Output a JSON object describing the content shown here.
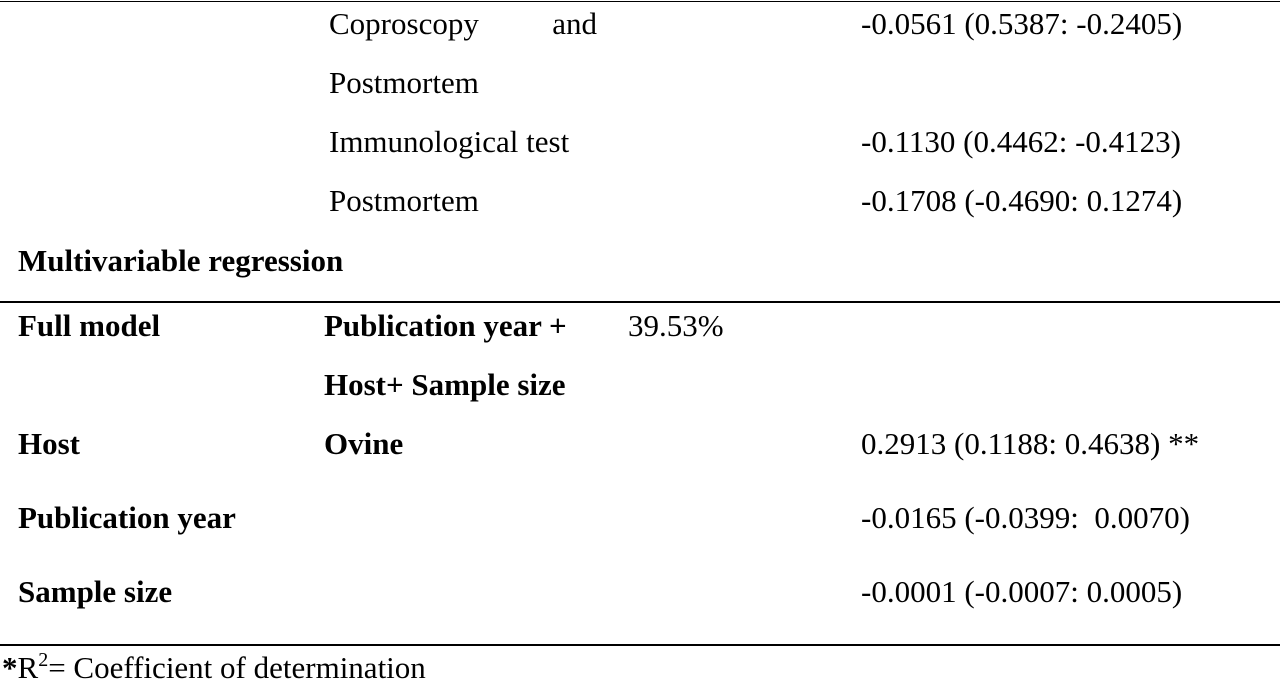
{
  "table": {
    "rows_top": [
      {
        "label_line1_a": "Coproscopy",
        "label_line1_b": "and",
        "label_line2": "Postmortem",
        "value": "-0.0561 (0.5387: -0.2405)"
      },
      {
        "label": "Immunological test",
        "value": "-0.1130 (0.4462: -0.4123)"
      },
      {
        "label": "Postmortem",
        "value": "-0.1708 (-0.4690: 0.1274)"
      }
    ],
    "section_title": "Multivariable regression",
    "full_model": {
      "label": "Full model",
      "model_line1": "Publication year +",
      "model_line2": "Host+ Sample size",
      "r2": "39.53%"
    },
    "host": {
      "label": "Host",
      "level": "Ovine",
      "value": "0.2913 (0.1188: 0.4638) **"
    },
    "publication_year": {
      "label": "Publication year",
      "value": "-0.0165 (-0.0399:  0.0070)"
    },
    "sample_size": {
      "label": "Sample size",
      "value": "-0.0001 (-0.0007: 0.0005)"
    }
  },
  "footnote": {
    "star": "*",
    "r": "R",
    "sup": "2",
    "text": "= Coefficient of determination"
  }
}
